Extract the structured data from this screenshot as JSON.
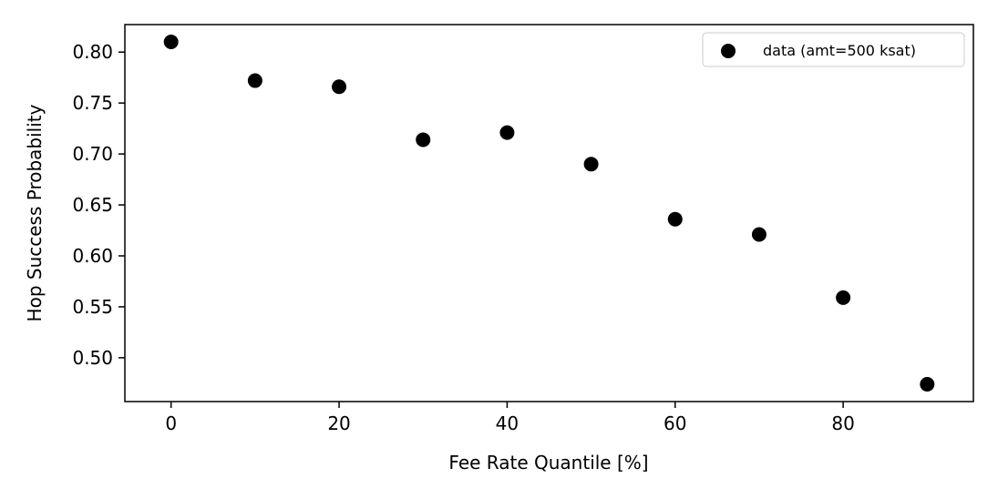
{
  "chart_data": {
    "type": "scatter",
    "title": "",
    "xlabel": "Fee Rate Quantile [%]",
    "ylabel": "Hop Success Probability",
    "xlim": [
      -5.5,
      95.5
    ],
    "ylim": [
      0.457,
      0.827
    ],
    "xticks": [
      0,
      20,
      40,
      60,
      80
    ],
    "yticks": [
      0.5,
      0.55,
      0.6,
      0.65,
      0.7,
      0.75,
      0.8
    ],
    "xtick_labels": [
      "0",
      "20",
      "40",
      "60",
      "80"
    ],
    "ytick_labels": [
      "0.50",
      "0.55",
      "0.60",
      "0.65",
      "0.70",
      "0.75",
      "0.80"
    ],
    "grid": false,
    "legend": {
      "position": "top-right",
      "entries": [
        "data (amt=500 ksat)"
      ]
    },
    "series": [
      {
        "name": "data (amt=500 ksat)",
        "color": "#000000",
        "x": [
          0,
          10,
          20,
          30,
          40,
          50,
          60,
          70,
          80,
          90
        ],
        "y": [
          0.81,
          0.772,
          0.766,
          0.714,
          0.721,
          0.69,
          0.636,
          0.621,
          0.559,
          0.474
        ]
      }
    ]
  }
}
